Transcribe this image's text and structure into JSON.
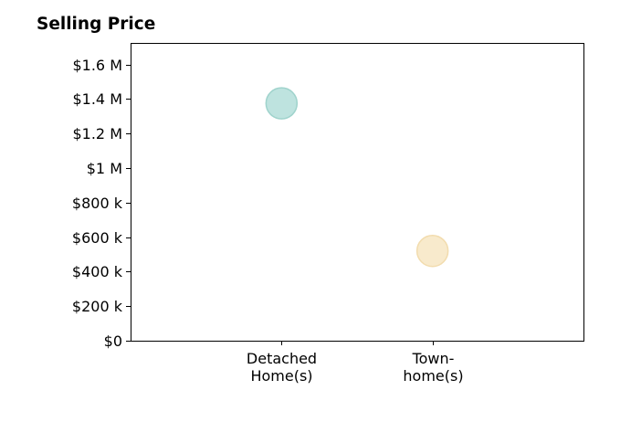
{
  "chart_data": {
    "type": "scatter",
    "title": "Selling Price",
    "xlabel": "",
    "ylabel": "",
    "categories": [
      [
        "Detached",
        "Home(s)"
      ],
      [
        "Town-",
        "home(s)"
      ]
    ],
    "values": [
      1375000,
      520000
    ],
    "colors": [
      "#b3ded9",
      "#f7e6c3"
    ],
    "edge_colors": [
      "#9fd3cc",
      "#f2dcae"
    ],
    "yticks": [
      {
        "value": 0,
        "label": "$0"
      },
      {
        "value": 200000,
        "label": "$200 k"
      },
      {
        "value": 400000,
        "label": "$400 k"
      },
      {
        "value": 600000,
        "label": "$600 k"
      },
      {
        "value": 800000,
        "label": "$800 k"
      },
      {
        "value": 1000000,
        "label": "$1 M"
      },
      {
        "value": 1200000,
        "label": "$1.2 M"
      },
      {
        "value": 1400000,
        "label": "$1.4 M"
      },
      {
        "value": 1600000,
        "label": "$1.6 M"
      }
    ],
    "ylim": [
      0,
      1725000
    ],
    "xlim": [
      -1,
      2
    ],
    "grid": false,
    "legend": "none"
  }
}
